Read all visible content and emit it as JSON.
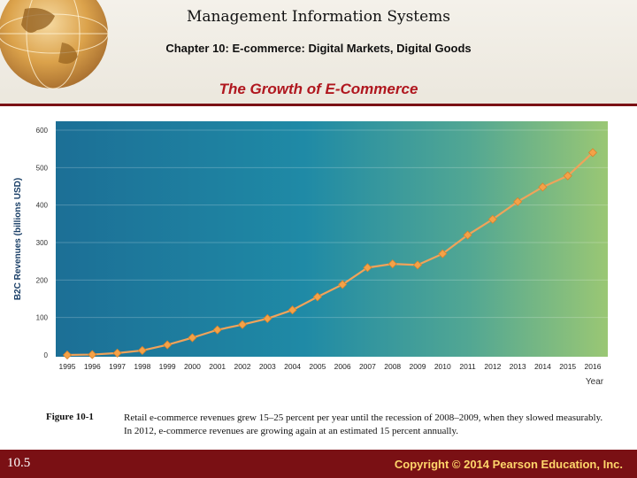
{
  "header": {
    "title": "Management Information Systems",
    "subtitle": "Chapter 10: E-commerce: Digital Markets, Digital Goods",
    "slide_title": "The Growth of E-Commerce"
  },
  "figure": {
    "label": "Figure 10-1",
    "caption": "Retail e-commerce revenues grew 15–25 percent per year until the recession of 2008–2009, when they slowed measurably. In 2012, e-commerce revenues are growing again at an estimated 15 percent annually."
  },
  "footer": {
    "slide_number": "10.5",
    "copyright": "Copyright © 2014 Pearson Education, Inc."
  },
  "icons": [
    "globe-icon"
  ],
  "colors": {
    "accent": "#7a1014",
    "title_red": "#b0171f",
    "line": "#f0a35a",
    "marker": "#f4a248"
  },
  "chart_data": {
    "type": "line",
    "title": "",
    "xlabel": "Year",
    "ylabel": "B2C Revenues (billions USD)",
    "x": [
      "1995",
      "1996",
      "1997",
      "1998",
      "1999",
      "2000",
      "2001",
      "2002",
      "2003",
      "2004",
      "2005",
      "2006",
      "2007",
      "2008",
      "2009",
      "2010",
      "2011",
      "2012",
      "2013",
      "2014",
      "2015",
      "2016"
    ],
    "series": [
      {
        "name": "B2C Revenues",
        "values": [
          0,
          1,
          5,
          12,
          27,
          46,
          67,
          81,
          97,
          120,
          155,
          188,
          233,
          243,
          240,
          270,
          320,
          362,
          409,
          448,
          478,
          540
        ]
      }
    ],
    "ylim": [
      0,
      600
    ],
    "yticks": [
      0,
      100,
      200,
      300,
      400,
      500,
      600
    ],
    "grid": true
  }
}
